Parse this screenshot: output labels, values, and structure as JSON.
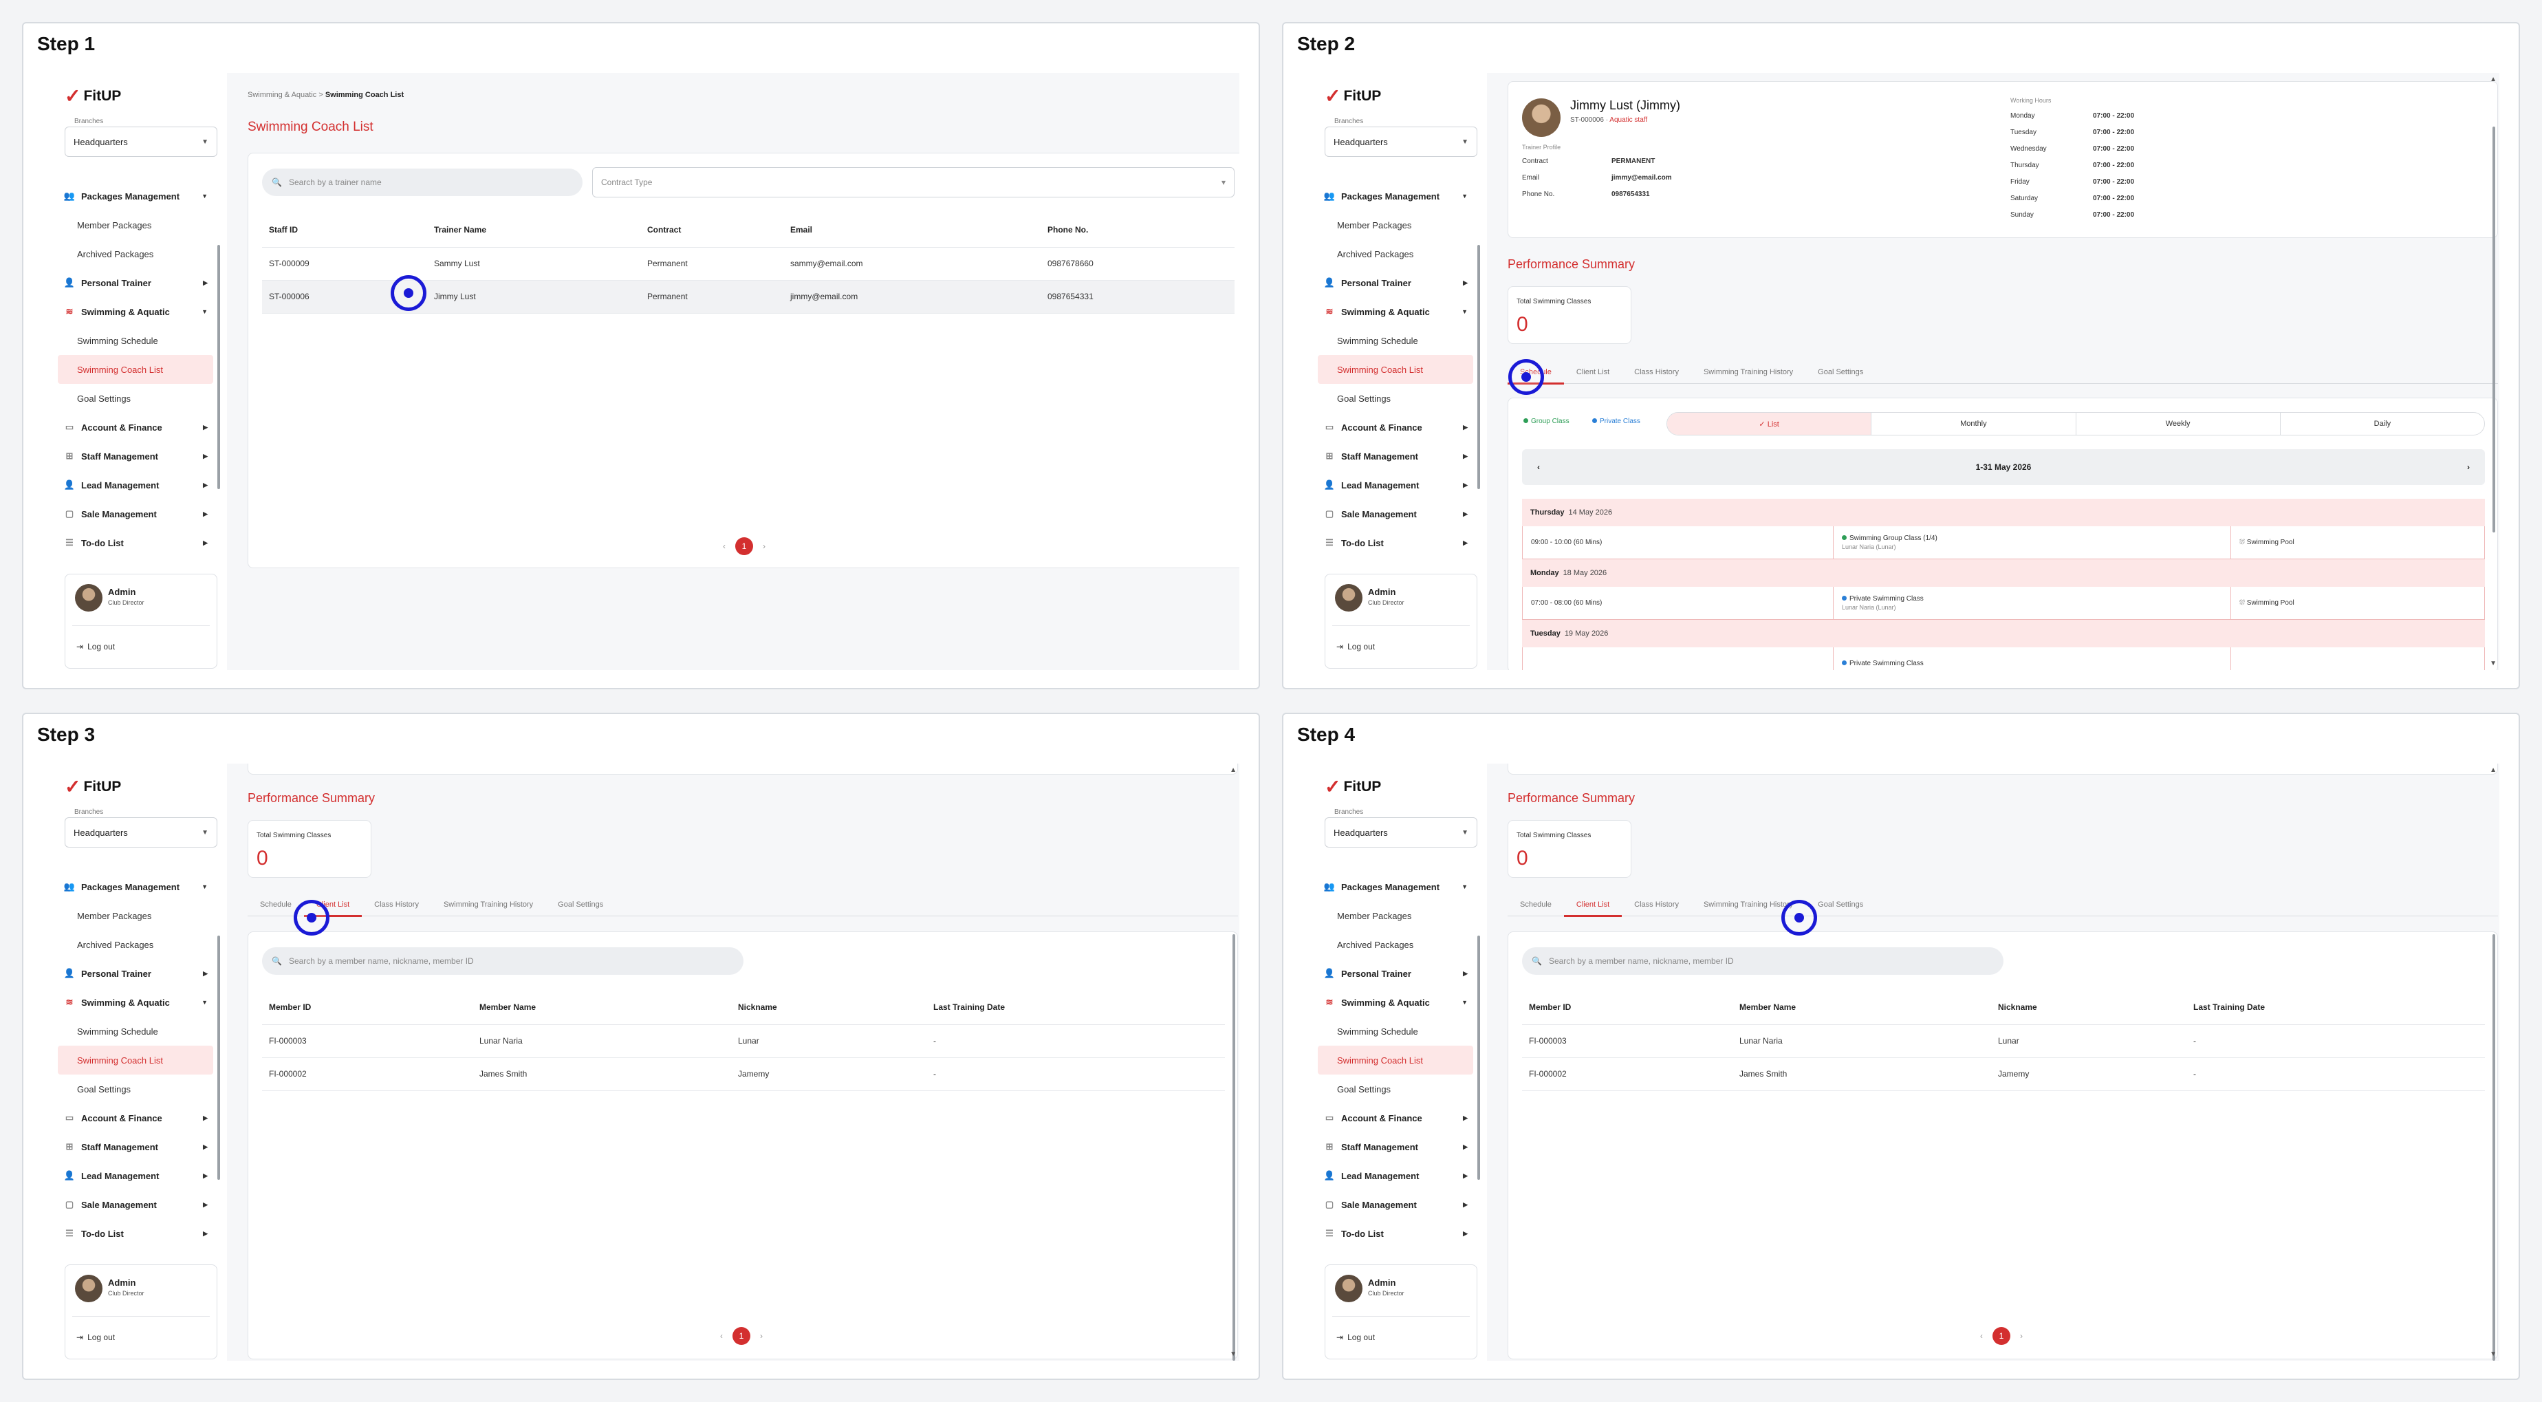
{
  "steps": [
    "Step 1",
    "Step 2",
    "Step 3",
    "Step 4"
  ],
  "brand": {
    "name": "FitUP",
    "accent": "#d32f2f",
    "marker": "#1a1ad6"
  },
  "sidebar": {
    "branches_label": "Branches",
    "branch_value": "Headquarters",
    "menu": {
      "packages": "Packages Management",
      "member_packages": "Member Packages",
      "archived_packages": "Archived Packages",
      "personal_trainer": "Personal Trainer",
      "swimming": "Swimming & Aquatic",
      "swimming_schedule": "Swimming Schedule",
      "swimming_coach_list": "Swimming Coach List",
      "goal_settings": "Goal Settings",
      "account": "Account & Finance",
      "staff": "Staff Management",
      "lead": "Lead Management",
      "sale": "Sale Management",
      "todo": "To-do List"
    },
    "user": {
      "name": "Admin",
      "role": "Club Director",
      "logout": "Log out"
    }
  },
  "step1": {
    "breadcrumb_parent": "Swimming & Aquatic",
    "breadcrumb_sep": ">",
    "breadcrumb_current": "Swimming Coach List",
    "title": "Swimming Coach List",
    "search_placeholder": "Search by a trainer name",
    "contract_placeholder": "Contract Type",
    "columns": [
      "Staff ID",
      "Trainer Name",
      "Contract",
      "Email",
      "Phone No."
    ],
    "rows": [
      [
        "ST-000009",
        "Sammy Lust",
        "Permanent",
        "sammy@email.com",
        "0987678660"
      ],
      [
        "ST-000006",
        "Jimmy Lust",
        "Permanent",
        "jimmy@email.com",
        "0987654331"
      ]
    ],
    "page": "1"
  },
  "step2": {
    "name": "Jimmy Lust (Jimmy)",
    "staff_id": "ST-000006",
    "staff_tag": "Aquatic staff",
    "trainer_profile": "Trainer Profile",
    "contract_label": "Contract",
    "contract_value": "PERMANENT",
    "email_label": "Email",
    "email_value": "jimmy@email.com",
    "phone_label": "Phone No.",
    "phone_value": "0987654331",
    "working_hours_label": "Working Hours",
    "hours": [
      [
        "Monday",
        "07:00 - 22:00"
      ],
      [
        "Tuesday",
        "07:00 - 22:00"
      ],
      [
        "Wednesday",
        "07:00 - 22:00"
      ],
      [
        "Thursday",
        "07:00 - 22:00"
      ],
      [
        "Friday",
        "07:00 - 22:00"
      ],
      [
        "Saturday",
        "07:00 - 22:00"
      ],
      [
        "Sunday",
        "07:00 - 22:00"
      ]
    ],
    "legend_group": "Group Class",
    "legend_private": "Private Class",
    "views": [
      "✓ List",
      "Monthly",
      "Weekly",
      "Daily"
    ],
    "date_range": "1-31 May 2026",
    "days": [
      {
        "day": "Thursday",
        "date": "14 May 2026",
        "time": "09:00 - 10:00 (60 Mins)",
        "class": "Swimming Group Class (1/4)",
        "client": "Lunar Naria (Lunar)",
        "location": "Swimming Pool"
      },
      {
        "day": "Monday",
        "date": "18 May 2026",
        "time": "07:00 - 08:00 (60 Mins)",
        "class": "Private Swimming Class",
        "client": "Lunar Naria (Lunar)",
        "location": "Swimming Pool"
      },
      {
        "day": "Tuesday",
        "date": "19 May 2026",
        "class": "Private Swimming Class"
      }
    ]
  },
  "perf": {
    "title": "Performance Summary",
    "stat_label": "Total Swimming Classes",
    "stat_value": "0",
    "tabs": [
      "Schedule",
      "Client List",
      "Class History",
      "Swimming Training History",
      "Goal Settings"
    ]
  },
  "step34": {
    "search_placeholder": "Search by a member name, nickname, member ID",
    "columns": [
      "Member ID",
      "Member Name",
      "Nickname",
      "Last Training Date"
    ],
    "rows": [
      [
        "FI-000003",
        "Lunar Naria",
        "Lunar",
        "-"
      ],
      [
        "FI-000002",
        "James Smith",
        "Jamemy",
        "-"
      ]
    ],
    "page": "1"
  }
}
